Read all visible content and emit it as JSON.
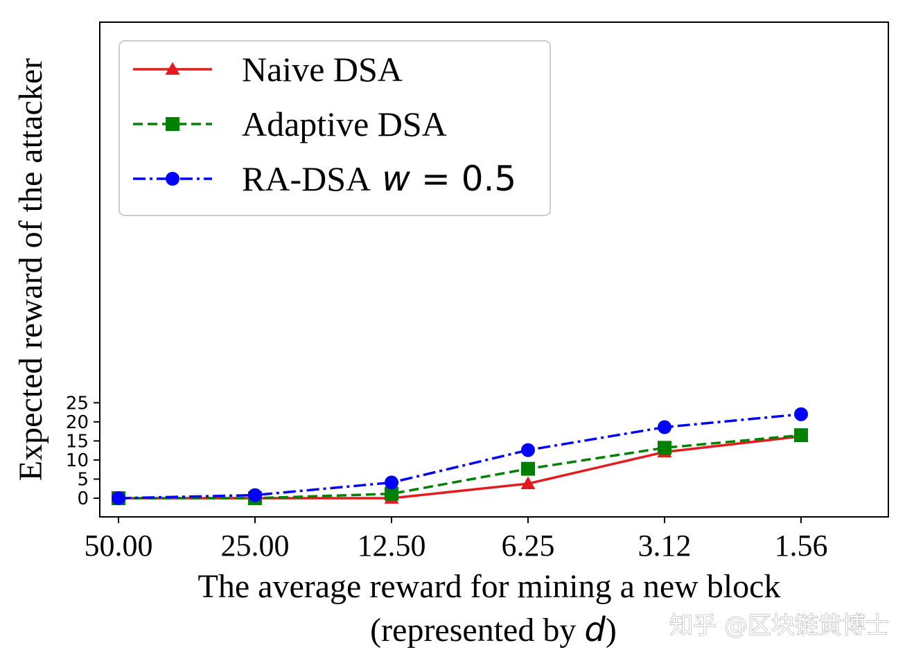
{
  "chart_data": {
    "type": "line",
    "categories": [
      "50.00",
      "25.00",
      "12.50",
      "6.25",
      "3.12",
      "1.56"
    ],
    "ylim": [
      -1,
      25
    ],
    "yticks": [
      0,
      5,
      10,
      15,
      20,
      25
    ],
    "xlabel_line1": "The average reward for mining a new block",
    "xlabel_line2_pre": "(represented by ",
    "xlabel_line2_var": "d",
    "xlabel_line2_post": ")",
    "ylabel": "Expected reward of the attacker",
    "legend_position": "top-left",
    "grid": false,
    "series": [
      {
        "name": "Naive DSA",
        "values": [
          0,
          0,
          0,
          3.8,
          12.1,
          16.2
        ],
        "color": "#e41a1c",
        "marker": "triangle",
        "dash": "solid"
      },
      {
        "name": "Adaptive DSA",
        "values": [
          0,
          0,
          1.15,
          7.7,
          13.2,
          16.5
        ],
        "color": "#008000",
        "marker": "square",
        "dash": "dashed"
      },
      {
        "name": "RA-DSA",
        "name_math": "w = 0.5",
        "values": [
          0,
          0.8,
          4.1,
          12.6,
          18.6,
          22.0
        ],
        "color": "#0000ff",
        "marker": "circle",
        "dash": "dashdot"
      }
    ]
  },
  "watermark": "知乎 @区块链黄博士"
}
